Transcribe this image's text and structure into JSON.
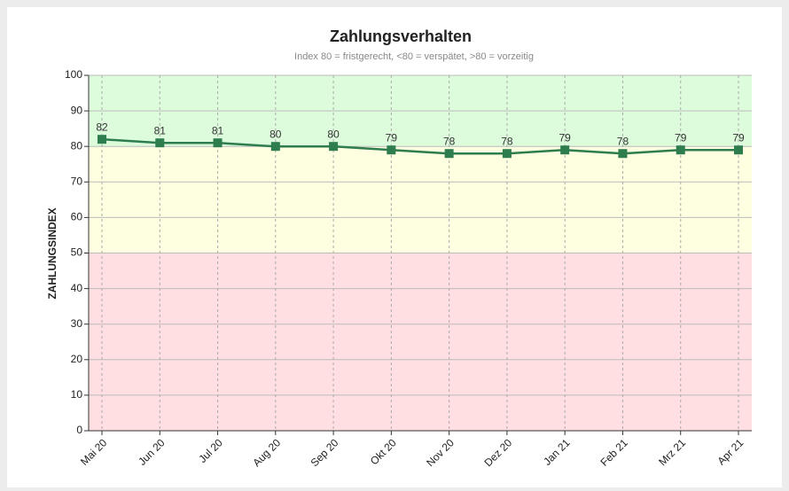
{
  "chart_data": {
    "type": "line",
    "title": "Zahlungsverhalten",
    "subtitle": "Index 80 = fristgerecht, <80 = verspätet, >80 = vorzeitig",
    "y_label": "ZAHLUNGSINDEX",
    "categories": [
      "Mai 20",
      "Jun 20",
      "Jul 20",
      "Aug 20",
      "Sep 20",
      "Okt 20",
      "Nov 20",
      "Dez 20",
      "Jan 21",
      "Feb 21",
      "Mrz 21",
      "Apr 21"
    ],
    "values": [
      82,
      81,
      81,
      80,
      80,
      79,
      78,
      78,
      79,
      78,
      79,
      79
    ],
    "color": "#2e7d4f",
    "ylim": [
      0,
      100
    ],
    "yticks": [
      0,
      10,
      20,
      30,
      40,
      50,
      60,
      70,
      80,
      90,
      100
    ],
    "grid": true,
    "bands": [
      {
        "from": 80,
        "to": 100,
        "color": "#dcfcdc"
      },
      {
        "from": 50,
        "to": 80,
        "color": "#fefee0"
      },
      {
        "from": 0,
        "to": 50,
        "color": "#ffdfe2"
      }
    ]
  }
}
